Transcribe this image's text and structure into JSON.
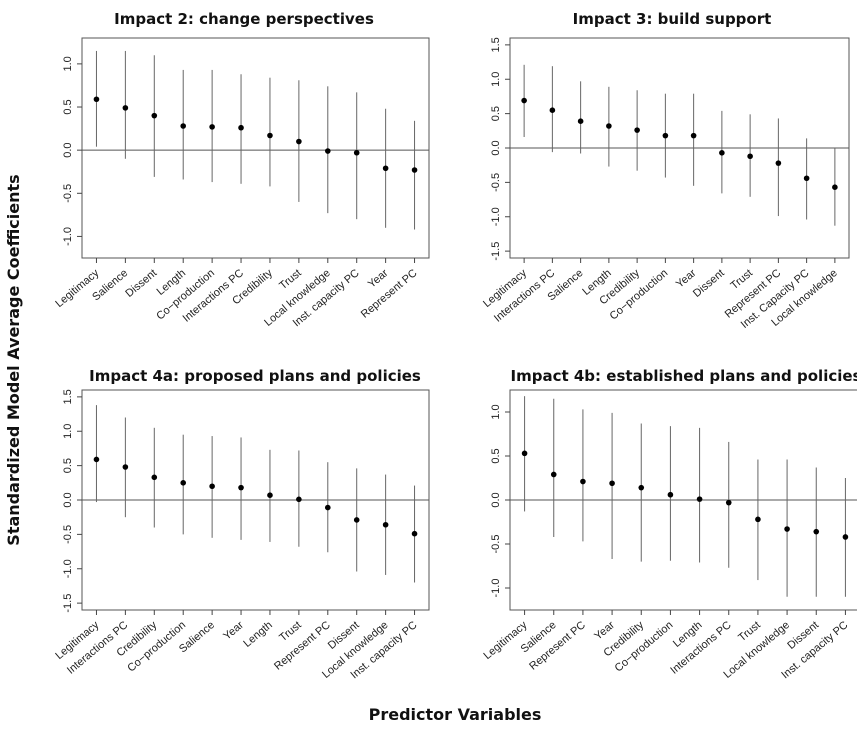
{
  "figure": {
    "ylabel": "Standardized Model Average Coefficients",
    "xlabel": "Predictor Variables"
  },
  "chart_data": [
    {
      "type": "scatter",
      "title": "Impact 2: change perspectives",
      "ylim": [
        -1.25,
        1.3
      ],
      "yticks": [
        -1.0,
        -0.5,
        0.0,
        0.5,
        1.0
      ],
      "categories": [
        "Legitimacy",
        "Salience",
        "Dissent",
        "Length",
        "Co−production",
        "Interactions PC",
        "Credibility",
        "Trust",
        "Local knowledge",
        "Inst. capacity PC",
        "Year",
        "Represent PC"
      ],
      "values": [
        0.59,
        0.49,
        0.4,
        0.28,
        0.27,
        0.26,
        0.17,
        0.1,
        -0.01,
        -0.03,
        -0.21,
        -0.23
      ],
      "lower": [
        0.04,
        -0.1,
        -0.31,
        -0.34,
        -0.37,
        -0.39,
        -0.42,
        -0.6,
        -0.73,
        -0.8,
        -0.9,
        -0.92
      ],
      "upper": [
        1.15,
        1.15,
        1.1,
        0.93,
        0.93,
        0.88,
        0.84,
        0.81,
        0.74,
        0.67,
        0.48,
        0.34
      ]
    },
    {
      "type": "scatter",
      "title": "Impact 3: build support",
      "ylim": [
        -1.6,
        1.6
      ],
      "yticks": [
        -1.5,
        -1.0,
        -0.5,
        0.0,
        0.5,
        1.0,
        1.5
      ],
      "categories": [
        "Legitimacy",
        "Interactions PC",
        "Salience",
        "Length",
        "Credibility",
        "Co−production",
        "Year",
        "Dissent",
        "Trust",
        "Represent PC",
        "Inst. Capacity PC",
        "Local knowledge"
      ],
      "values": [
        0.69,
        0.55,
        0.39,
        0.32,
        0.26,
        0.18,
        0.18,
        -0.07,
        -0.12,
        -0.22,
        -0.44,
        -0.57
      ],
      "lower": [
        0.16,
        -0.06,
        -0.08,
        -0.27,
        -0.33,
        -0.43,
        -0.55,
        -0.66,
        -0.71,
        -0.99,
        -1.04,
        -1.13
      ],
      "upper": [
        1.21,
        1.19,
        0.97,
        0.89,
        0.84,
        0.79,
        0.79,
        0.54,
        0.49,
        0.43,
        0.14,
        0.0
      ]
    },
    {
      "type": "scatter",
      "title": "Impact 4a: proposed plans and policies",
      "ylim": [
        -1.6,
        1.6
      ],
      "yticks": [
        -1.5,
        -1.0,
        -0.5,
        0.0,
        0.5,
        1.0,
        1.5
      ],
      "categories": [
        "Legitimacy",
        "Interactions PC",
        "Credibility",
        "Co−production",
        "Salience",
        "Year",
        "Length",
        "Trust",
        "Represent PC",
        "Dissent",
        "Local knowledge",
        "Inst. capacity PC"
      ],
      "values": [
        0.59,
        0.48,
        0.33,
        0.25,
        0.2,
        0.18,
        0.07,
        0.01,
        -0.11,
        -0.29,
        -0.36,
        -0.49
      ],
      "lower": [
        -0.03,
        -0.25,
        -0.4,
        -0.5,
        -0.55,
        -0.58,
        -0.61,
        -0.68,
        -0.76,
        -1.04,
        -1.09,
        -1.2
      ],
      "upper": [
        1.38,
        1.2,
        1.05,
        0.95,
        0.93,
        0.91,
        0.73,
        0.72,
        0.55,
        0.46,
        0.37,
        0.21
      ]
    },
    {
      "type": "scatter",
      "title": "Impact 4b: established plans and policies",
      "ylim": [
        -1.25,
        1.25
      ],
      "yticks": [
        -1.0,
        -0.5,
        0.0,
        0.5,
        1.0
      ],
      "categories": [
        "Legitimacy",
        "Salience",
        "Represent PC",
        "Year",
        "Credibility",
        "Co−production",
        "Length",
        "Interactions PC",
        "Trust",
        "Local knowledge",
        "Dissent",
        "Inst. capacity PC"
      ],
      "values": [
        0.53,
        0.29,
        0.21,
        0.19,
        0.14,
        0.06,
        0.01,
        -0.03,
        -0.22,
        -0.33,
        -0.36,
        -0.42
      ],
      "lower": [
        -0.13,
        -0.42,
        -0.47,
        -0.67,
        -0.7,
        -0.69,
        -0.71,
        -0.77,
        -0.91,
        -1.1,
        -1.1,
        -1.1
      ],
      "upper": [
        1.18,
        1.15,
        1.03,
        0.99,
        0.87,
        0.84,
        0.82,
        0.66,
        0.46,
        0.46,
        0.37,
        0.25
      ]
    }
  ]
}
